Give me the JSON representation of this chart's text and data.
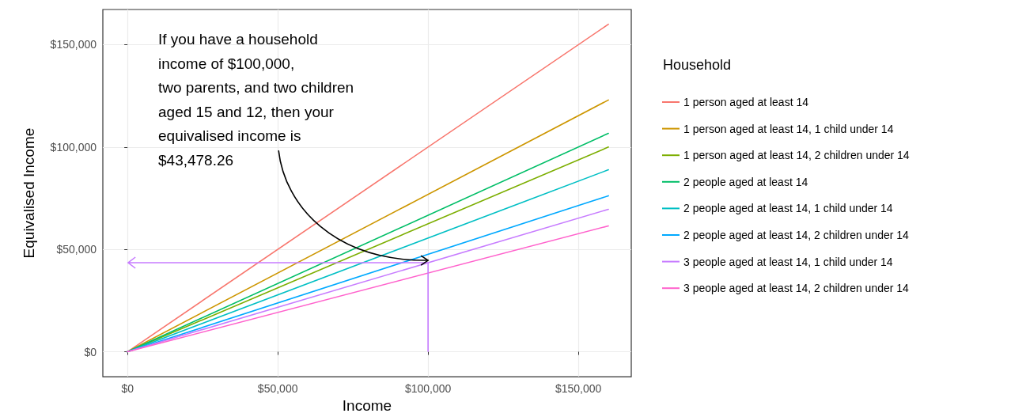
{
  "chart_data": {
    "type": "line",
    "xlabel": "Income",
    "ylabel": "Equivalised Income",
    "legend_title": "Household",
    "legend": "right",
    "grid": true,
    "x": [
      0,
      160000
    ],
    "xlim": [
      -8200,
      167600
    ],
    "ylim": [
      -12200,
      167200
    ],
    "xticks": [
      {
        "value": 0,
        "label": "$0"
      },
      {
        "value": 50000,
        "label": "$50,000"
      },
      {
        "value": 100000,
        "label": "$100,000"
      },
      {
        "value": 150000,
        "label": "$150,000"
      }
    ],
    "yticks": [
      {
        "value": 0,
        "label": "$0"
      },
      {
        "value": 50000,
        "label": "$50,000"
      },
      {
        "value": 100000,
        "label": "$100,000"
      },
      {
        "value": 150000,
        "label": "$150,000"
      }
    ],
    "series": [
      {
        "name": "1 person aged at least 14",
        "color": "#f8766d",
        "values": [
          0,
          160000
        ]
      },
      {
        "name": "1 person aged at least 14, 1 child under 14",
        "color": "#cd9600",
        "values": [
          0,
          123000
        ]
      },
      {
        "name": "1 person aged at least 14, 2 children under 14",
        "color": "#7cae00",
        "values": [
          0,
          100000
        ]
      },
      {
        "name": "2 people aged at least 14",
        "color": "#00be67",
        "values": [
          0,
          106700
        ]
      },
      {
        "name": "2 people aged at least 14, 1 child under 14",
        "color": "#00bfc4",
        "values": [
          0,
          88900
        ]
      },
      {
        "name": "2 people aged at least 14, 2 children under 14",
        "color": "#00a9ff",
        "values": [
          0,
          76200
        ]
      },
      {
        "name": "3 people aged at least 14, 1 child under 14",
        "color": "#c77cff",
        "values": [
          0,
          69600
        ]
      },
      {
        "name": "3 people aged at least 14, 2 children under 14",
        "color": "#ff61cc",
        "values": [
          0,
          61500
        ]
      }
    ],
    "annotations": [
      {
        "text": "If you have a household\nincome of $100,000,\ntwo parents, and two children\naged 15 and 12, then your\nequivalised income is\n$43,478.26",
        "x": 100000,
        "y": 43478.26
      }
    ]
  }
}
